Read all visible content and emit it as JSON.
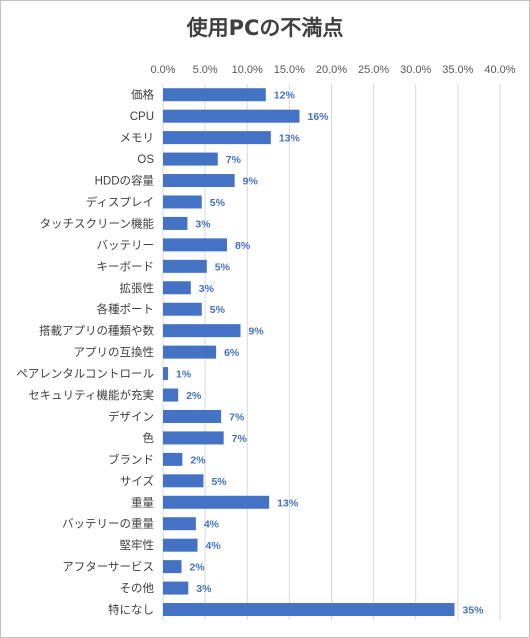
{
  "chart_data": {
    "type": "bar",
    "orientation": "horizontal",
    "title": "使用PCの不満点",
    "xlabel": "",
    "ylabel": "",
    "xlim": [
      0,
      40
    ],
    "tick_values": [
      0,
      5,
      10,
      15,
      20,
      25,
      30,
      35,
      40
    ],
    "tick_labels": [
      "0.0%",
      "5.0%",
      "10.0%",
      "15.0%",
      "20.0%",
      "25.0%",
      "30.0%",
      "35.0%",
      "40.0%"
    ],
    "axis_position": "top",
    "grid": true,
    "legend": "none",
    "bar_color": "#4472c4",
    "label_color": "#4472c4",
    "categories": [
      "価格",
      "CPU",
      "メモリ",
      "OS",
      "HDDの容量",
      "ディスプレイ",
      "タッチスクリーン機能",
      "バッテリー",
      "キーボード",
      "拡張性",
      "各種ポート",
      "搭載アプリの種類や数",
      "アプリの互換性",
      "ペアレンタルコントロール",
      "セキュリティ機能が充実",
      "デザイン",
      "色",
      "ブランド",
      "サイズ",
      "重量",
      "バッテリーの重量",
      "堅牢性",
      "アフターサービス",
      "その他",
      "特になし"
    ],
    "values": [
      12.2,
      16.2,
      12.8,
      6.5,
      8.5,
      4.6,
      2.9,
      7.6,
      5.2,
      3.3,
      4.6,
      9.2,
      6.3,
      0.6,
      1.8,
      6.9,
      7.2,
      2.3,
      4.8,
      12.6,
      3.9,
      4.1,
      2.2,
      3.0,
      34.6
    ],
    "data_labels": [
      "12%",
      "16%",
      "13%",
      "7%",
      "9%",
      "5%",
      "3%",
      "8%",
      "5%",
      "3%",
      "5%",
      "9%",
      "6%",
      "1%",
      "2%",
      "7%",
      "7%",
      "2%",
      "5%",
      "13%",
      "4%",
      "4%",
      "2%",
      "3%",
      "35%"
    ]
  }
}
